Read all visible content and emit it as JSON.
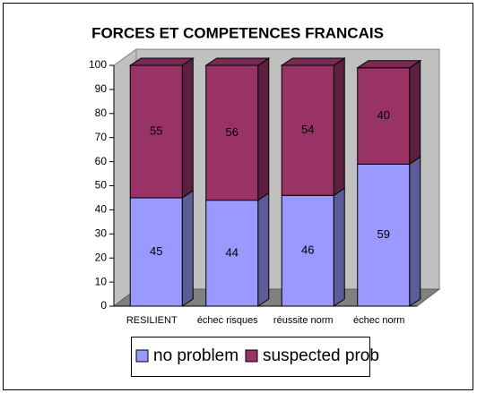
{
  "chart_data": {
    "type": "bar",
    "stacked": true,
    "title": "FORCES ET COMPETENCES FRANCAIS",
    "categories": [
      "RESILIENT",
      "échec risques",
      "réussite norm",
      "échec norm"
    ],
    "series": [
      {
        "name": "no problem",
        "color": "#9999ff",
        "values": [
          45,
          44,
          46,
          59
        ]
      },
      {
        "name": "suspected prob",
        "color": "#993366",
        "values": [
          55,
          56,
          54,
          40
        ]
      }
    ],
    "ylim": [
      0,
      100
    ],
    "yticks": [
      0,
      10,
      20,
      30,
      40,
      50,
      60,
      70,
      80,
      90,
      100
    ],
    "grid": false,
    "legend": "bottom"
  }
}
